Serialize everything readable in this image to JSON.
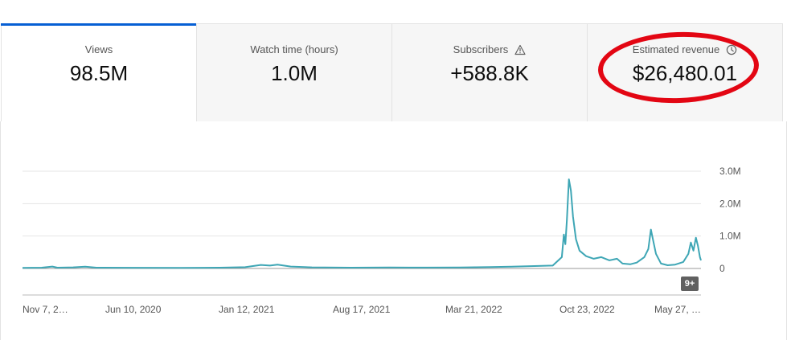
{
  "metrics": [
    {
      "label": "Views",
      "value": "98.5M",
      "active": true,
      "icon": null
    },
    {
      "label": "Watch time (hours)",
      "value": "1.0M",
      "active": false,
      "icon": null
    },
    {
      "label": "Subscribers",
      "value": "+588.8K",
      "active": false,
      "icon": "warning-icon"
    },
    {
      "label": "Estimated revenue",
      "value": "$26,480.01",
      "active": false,
      "icon": "clock-icon"
    }
  ],
  "colors": {
    "accent": "#065fd4",
    "series": "#3ea6b5",
    "highlight": "#e30613",
    "grid": "#e5e5e5"
  },
  "chart_data": {
    "type": "line",
    "series_metric": "Views",
    "y_ticks": [
      "3.0M",
      "2.0M",
      "1.0M",
      "0"
    ],
    "ylim": [
      0,
      3000000
    ],
    "x_tick_labels": [
      "Nov 7, 2…",
      "Jun 10, 2020",
      "Jan 12, 2021",
      "Aug 17, 2021",
      "Mar 21, 2022",
      "Oct 23, 2022",
      "May 27, …"
    ],
    "xlim": [
      "2019-11-07",
      "2023-07-10"
    ],
    "series": [
      {
        "points": [
          [
            "2019-11-07",
            20000
          ],
          [
            "2019-12-15",
            25000
          ],
          [
            "2020-01-05",
            60000
          ],
          [
            "2020-01-15",
            25000
          ],
          [
            "2020-02-15",
            35000
          ],
          [
            "2020-03-10",
            55000
          ],
          [
            "2020-04-01",
            25000
          ],
          [
            "2020-06-10",
            22000
          ],
          [
            "2020-09-15",
            20000
          ],
          [
            "2020-12-01",
            25000
          ],
          [
            "2021-01-20",
            40000
          ],
          [
            "2021-02-20",
            110000
          ],
          [
            "2021-03-10",
            90000
          ],
          [
            "2021-03-25",
            120000
          ],
          [
            "2021-04-20",
            60000
          ],
          [
            "2021-06-01",
            35000
          ],
          [
            "2021-08-17",
            25000
          ],
          [
            "2021-11-01",
            30000
          ],
          [
            "2022-01-15",
            28000
          ],
          [
            "2022-03-21",
            30000
          ],
          [
            "2022-05-20",
            45000
          ],
          [
            "2022-07-01",
            55000
          ],
          [
            "2022-08-15",
            75000
          ],
          [
            "2022-09-20",
            90000
          ],
          [
            "2022-10-08",
            350000
          ],
          [
            "2022-10-12",
            1050000
          ],
          [
            "2022-10-15",
            750000
          ],
          [
            "2022-10-18",
            1500000
          ],
          [
            "2022-10-22",
            2750000
          ],
          [
            "2022-10-26",
            2400000
          ],
          [
            "2022-10-30",
            1600000
          ],
          [
            "2022-11-05",
            900000
          ],
          [
            "2022-11-12",
            550000
          ],
          [
            "2022-11-25",
            380000
          ],
          [
            "2022-12-10",
            300000
          ],
          [
            "2022-12-25",
            350000
          ],
          [
            "2023-01-10",
            250000
          ],
          [
            "2023-01-25",
            300000
          ],
          [
            "2023-02-05",
            150000
          ],
          [
            "2023-02-20",
            130000
          ],
          [
            "2023-03-05",
            180000
          ],
          [
            "2023-03-20",
            350000
          ],
          [
            "2023-03-28",
            600000
          ],
          [
            "2023-04-02",
            1200000
          ],
          [
            "2023-04-06",
            900000
          ],
          [
            "2023-04-12",
            450000
          ],
          [
            "2023-04-22",
            150000
          ],
          [
            "2023-05-05",
            100000
          ],
          [
            "2023-05-20",
            120000
          ],
          [
            "2023-06-05",
            200000
          ],
          [
            "2023-06-15",
            450000
          ],
          [
            "2023-06-20",
            800000
          ],
          [
            "2023-06-25",
            550000
          ],
          [
            "2023-06-30",
            950000
          ],
          [
            "2023-07-04",
            700000
          ],
          [
            "2023-07-08",
            350000
          ],
          [
            "2023-07-10",
            250000
          ]
        ]
      }
    ],
    "grid": true,
    "badge": "9+"
  }
}
